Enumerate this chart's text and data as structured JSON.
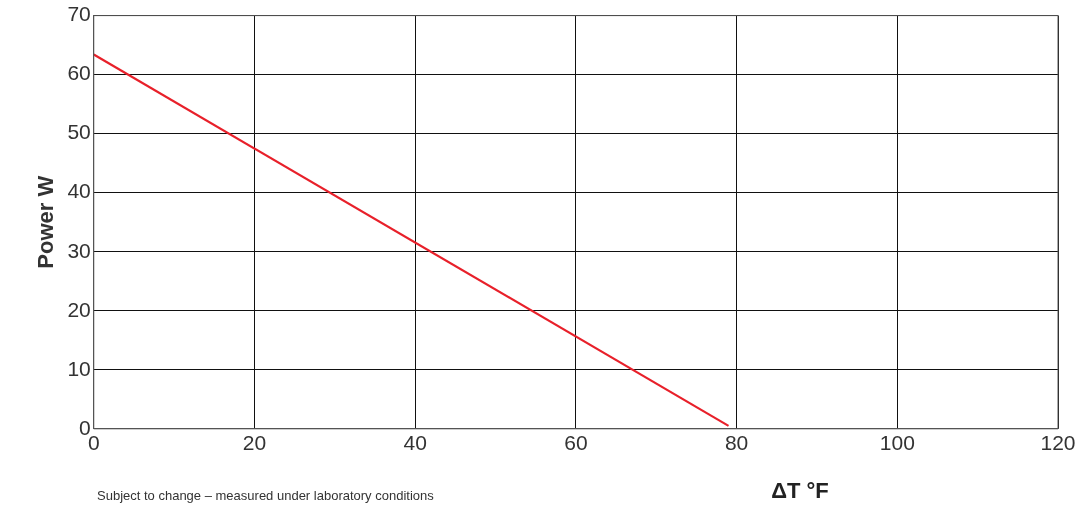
{
  "chart_data": {
    "type": "line",
    "xlabel": "ΔT °F",
    "ylabel": "Power W",
    "annotations": [
      "Subject to change – measured under laboratory conditions"
    ],
    "series": [
      {
        "color": "#e8202a",
        "x": [
          0,
          79
        ],
        "values": [
          63.4,
          0.5
        ]
      }
    ],
    "xlim": [
      0,
      120
    ],
    "xticks": [
      0,
      20,
      40,
      60,
      80,
      100,
      120
    ],
    "ylim": [
      0,
      70
    ],
    "yticks": [
      0,
      10,
      20,
      30,
      40,
      50,
      60,
      70
    ],
    "grid": true,
    "legend": false,
    "marker": "none",
    "line_style": "solid"
  }
}
